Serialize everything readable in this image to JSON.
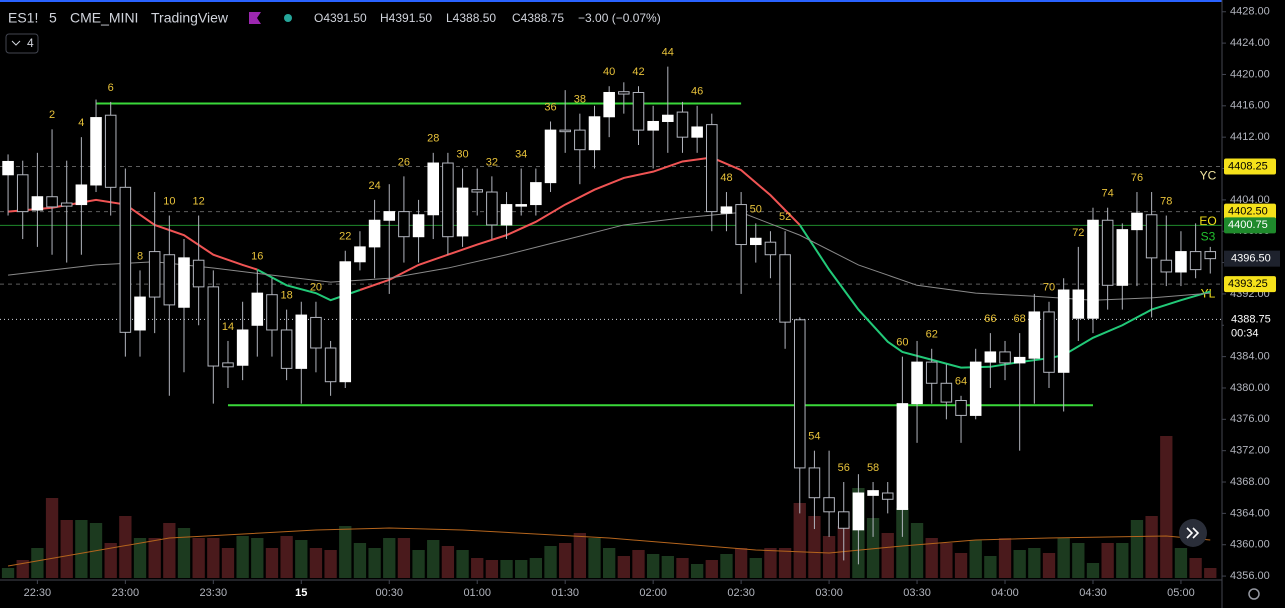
{
  "header": {
    "symbol": "ES1!",
    "interval": "5",
    "exchange": "CME_MINI",
    "source": "TradingView",
    "ohlc": [
      "O4391.50",
      "H4391.50",
      "L4388.50",
      "C4388.75",
      "−3.00 (−0.07%)"
    ],
    "indicators_count": "4"
  },
  "chart_data": {
    "type": "candlestick",
    "x": [
      -1,
      0,
      1,
      2,
      3,
      4,
      5,
      6,
      7,
      8,
      9,
      10,
      11,
      12,
      13,
      14,
      15,
      16,
      17,
      18,
      19,
      20,
      21,
      22,
      23,
      24,
      25,
      26,
      27,
      28,
      29,
      30,
      31,
      32,
      33,
      34,
      35,
      36,
      37,
      38,
      39,
      40,
      41,
      42,
      43,
      44,
      45,
      46,
      47,
      48,
      49,
      50,
      51,
      52,
      53,
      54,
      55,
      56,
      57,
      58,
      59,
      60,
      61,
      62,
      63,
      64,
      65,
      66,
      67,
      68,
      69,
      70,
      71,
      72,
      73,
      74,
      75,
      76,
      77,
      78,
      79,
      80,
      81
    ],
    "open": [
      4407.2,
      4407.2,
      4402.7,
      4404.4,
      4403.6,
      4403.4,
      4405.9,
      4414.8,
      4405.6,
      4387.4,
      4397.4,
      4397,
      4390.3,
      4396.3,
      4392.9,
      4383.2,
      4382.9,
      4388,
      4391.9,
      4387.4,
      4382.5,
      4389,
      4385.1,
      4380.8,
      4396.1,
      4398,
      4401.4,
      4402.5,
      4399.3,
      4402.1,
      4408.7,
      4399.4,
      4405.3,
      4405,
      4400.8,
      4403.2,
      4403.4,
      4406.2,
      4412.9,
      4412.9,
      4410.4,
      4414.6,
      4417.8,
      4417.7,
      4412.9,
      4414,
      4415.2,
      4412,
      4413.6,
      4402.3,
      4403.4,
      4398.3,
      4398.6,
      4397,
      4388.7,
      4369.8,
      4366,
      4364.2,
      4361.9,
      4366.3,
      4366.6,
      4364.5,
      4378,
      4383.3,
      4380.6,
      4378.4,
      4376.5,
      4383.3,
      4384.6,
      4383.2,
      4383.8,
      4389.7,
      4382,
      4388.9,
      4388.9,
      4401.4,
      4393.1,
      4400.2,
      4402.1,
      4396.3,
      4394.8,
      4397.4,
      4397.4
    ],
    "high": [
      4409.8,
      4409,
      4410,
      4413,
      4409,
      4412,
      4416.8,
      4416.5,
      4408,
      4395,
      4405,
      4402,
      4399,
      4402,
      4395,
      4386,
      4391,
      4395,
      4394,
      4390,
      4391,
      4391,
      4386,
      4397.5,
      4400,
      4404,
      4406,
      4407,
      4404,
      4410,
      4410,
      4408,
      4408,
      4407,
      4405,
      4408,
      4408,
      4414,
      4418,
      4415,
      4416,
      4418.5,
      4419,
      4418.5,
      4416,
      4421,
      4416.5,
      4416,
      4415,
      4405,
      4405,
      4401,
      4400,
      4400,
      4389,
      4372,
      4372,
      4368,
      4369,
      4368,
      4368,
      4384,
      4386,
      4385,
      4383,
      4379,
      4385,
      4387,
      4386,
      4387,
      4392,
      4391,
      4394,
      4398,
      4403,
      4403,
      4401,
      4405,
      4405,
      4402,
      4400,
      4401,
      4398
    ],
    "low": [
      4402,
      4399,
      4398,
      4397,
      4396,
      4397,
      4405,
      4402,
      4384,
      4384,
      4387,
      4379,
      4382,
      4388,
      4378,
      4380,
      4381,
      4384,
      4384,
      4381,
      4378,
      4382,
      4379,
      4380,
      4395,
      4394,
      4392,
      4396,
      4396,
      4399,
      4397,
      4398,
      4402,
      4399,
      4399,
      4402,
      4402,
      4405,
      4410,
      4406,
      4408,
      4412,
      4415,
      4411,
      4408,
      4410,
      4410,
      4410,
      4400,
      4400,
      4392,
      4396,
      4394,
      4385,
      4364,
      4362,
      4361,
      4358,
      4357.5,
      4361,
      4364,
      4361,
      4373,
      4378,
      4376,
      4373,
      4376,
      4380,
      4381,
      4372,
      4378,
      4380,
      4377,
      4386,
      4387,
      4390,
      4390,
      4393,
      4389,
      4393,
      4393,
      4394,
      4394.6
    ],
    "close": [
      4408.9,
      4402.5,
      4404.4,
      4403.1,
      4403.2,
      4405.9,
      4414.5,
      4405.6,
      4387.1,
      4391.6,
      4391.6,
      4390.6,
      4396.6,
      4392.9,
      4382.8,
      4382.7,
      4387.4,
      4392.1,
      4387.4,
      4382.5,
      4389.3,
      4385.1,
      4380.8,
      4396.1,
      4398,
      4401.4,
      4402.5,
      4399.3,
      4402.1,
      4408.7,
      4399.3,
      4405.5,
      4405,
      4400.8,
      4403.4,
      4403.4,
      4406.2,
      4412.9,
      4412.7,
      4410.4,
      4414.6,
      4417.7,
      4417.5,
      4412.9,
      4414,
      4414.8,
      4412,
      4413.3,
      4402.5,
      4403.1,
      4398.3,
      4399.1,
      4397,
      4388.4,
      4369.8,
      4366,
      4364.2,
      4362.1,
      4366.6,
      4366.9,
      4365.8,
      4378,
      4383.3,
      4380.6,
      4378.2,
      4376.5,
      4383.3,
      4384.6,
      4383.2,
      4383.9,
      4389.7,
      4382,
      4392.5,
      4392.5,
      4401.4,
      4393.1,
      4400.2,
      4402.3,
      4396.6,
      4394.8,
      4397.4,
      4395.1,
      4396.5
    ],
    "up_color": "#ffffff",
    "down_color": "#000000",
    "wick_color": "#b2b5be",
    "volume": [
      10,
      18,
      30,
      80,
      58,
      58,
      55,
      35,
      62,
      40,
      40,
      55,
      50,
      40,
      40,
      30,
      42,
      40,
      30,
      42,
      38,
      30,
      28,
      52,
      35,
      30,
      40,
      40,
      28,
      38,
      32,
      28,
      20,
      18,
      18,
      18,
      20,
      32,
      35,
      45,
      40,
      30,
      22,
      28,
      24,
      22,
      20,
      14,
      18,
      24,
      30,
      20,
      30,
      30,
      75,
      62,
      42,
      52,
      90,
      60,
      45,
      70,
      55,
      40,
      35,
      25,
      38,
      22,
      40,
      28,
      30,
      25,
      40,
      35,
      15,
      35,
      35,
      58,
      62,
      142,
      30,
      20,
      10
    ],
    "volume_lim": [
      0,
      150
    ],
    "volume_up_color": "#1c3a1f",
    "volume_down_color": "#4a1a1c",
    "volume_ma": {
      "color": "#b5651d",
      "x": [
        -1,
        10,
        20,
        25,
        30,
        40,
        50,
        55,
        60,
        65,
        70,
        78,
        81
      ],
      "values": [
        12,
        40,
        48,
        50,
        48,
        40,
        28,
        25,
        32,
        38,
        40,
        42,
        38
      ]
    },
    "lines": [
      {
        "color": "#f05454",
        "x": [
          -1,
          2,
          5,
          7,
          9,
          11,
          13,
          15,
          16
        ],
        "values": [
          4402.5,
          4403,
          4404,
          4403.4,
          4400.8,
          4399.5,
          4397,
          4395.7,
          4395.1
        ]
      },
      {
        "color": "#22c978",
        "x": [
          16,
          18,
          20,
          21,
          23
        ],
        "values": [
          4395.1,
          4393.1,
          4392.1,
          4391.2,
          4392.5
        ]
      },
      {
        "color": "#f05454",
        "x": [
          23,
          25,
          27,
          29,
          31,
          33,
          35,
          37,
          39,
          41,
          43,
          45,
          47,
          49,
          51,
          53
        ],
        "values": [
          4392.5,
          4393.8,
          4395.7,
          4397,
          4398.3,
          4399.5,
          4401.2,
          4403.4,
          4405.3,
          4406.8,
          4407.6,
          4408.9,
          4409.4,
          4407.8,
          4404.6,
          4400.8
        ]
      },
      {
        "color": "#22c978",
        "x": [
          53,
          55,
          57,
          59,
          60,
          62,
          64,
          66,
          68,
          70,
          71,
          73,
          75,
          77,
          79,
          81
        ],
        "values": [
          4400.8,
          4395.1,
          4390,
          4385.9,
          4384.6,
          4383.6,
          4382.6,
          4382.7,
          4383.3,
          4383.8,
          4384.2,
          4386.4,
          4388,
          4390,
          4391.2,
          4392.3
        ]
      },
      {
        "color": "#8a8a8a",
        "x": [
          -1,
          5,
          9,
          13,
          17,
          21,
          25,
          29,
          33,
          37,
          41,
          45,
          49,
          53,
          57,
          61,
          65,
          69,
          73,
          77,
          81
        ],
        "values": [
          4394.4,
          4395.7,
          4396.1,
          4395.3,
          4394.4,
          4393.5,
          4394,
          4395.3,
          4397,
          4398.9,
          4400.8,
          4401.7,
          4402.4,
          4399.5,
          4395.7,
          4393.1,
          4392.1,
          4391.7,
          4391.2,
          4391.5,
          4392.1
        ]
      }
    ],
    "hlines": [
      {
        "value": 4416.3,
        "x": [
          5,
          49
        ],
        "color": "#3ad83a"
      },
      {
        "value": 4377.8,
        "x": [
          14,
          73
        ],
        "color": "#3ad83a"
      }
    ],
    "levels": [
      {
        "name": "YC",
        "price": 4408.25,
        "color": "#f5e11b",
        "text_color": "#f2e6a0",
        "dashed": true
      },
      {
        "name": "EO",
        "price": {
          "value": 4402.5,
          "label": "4402.50"
        },
        "color": "#f5e11b",
        "text_color": "#f5e11b",
        "dashed": true
      },
      {
        "name": "S3",
        "price": 4400.75,
        "color": "#1f8a2c",
        "text_color": "#22c02e",
        "dashed": false
      },
      {
        "name": "YL",
        "price": 4393.25,
        "color": "#f5e11b",
        "text_color": "#f5e11b",
        "dashed": true
      }
    ],
    "last_price": {
      "value": 4396.5,
      "label": "4396.50"
    },
    "crosshair": {
      "price": 4388.75,
      "countdown": "00:34"
    },
    "bar_numbers": [
      2,
      4,
      6,
      8,
      10,
      12,
      14,
      16,
      18,
      20,
      22,
      24,
      26,
      28,
      30,
      32,
      34,
      36,
      38,
      40,
      42,
      44,
      46,
      48,
      50,
      52,
      54,
      56,
      58,
      60,
      62,
      64,
      66,
      68,
      70,
      72,
      74,
      76,
      78
    ],
    "bar_number_color": "#e8c23a",
    "ylim": [
      4355.5,
      4429.5
    ],
    "yticks": [
      {
        "value": 4428,
        "label": "4428.00"
      },
      {
        "value": 4424,
        "label": "4424.00"
      },
      {
        "value": 4420,
        "label": "4420.00"
      },
      {
        "value": 4416,
        "label": "4416.00"
      },
      {
        "value": 4412,
        "label": "4412.00"
      },
      {
        "value": 4408,
        "label": "4408.00"
      },
      {
        "value": 4404,
        "label": "4404.00"
      },
      {
        "value": 4400,
        "label": "4400.00"
      },
      {
        "value": 4396,
        "label": "4396.00"
      },
      {
        "value": 4392,
        "label": "4392.00"
      },
      {
        "value": 4388,
        "label": "4388.00"
      },
      {
        "value": 4384,
        "label": "4384.00"
      },
      {
        "value": 4380,
        "label": "4380.00"
      },
      {
        "value": 4376,
        "label": "4376.00"
      },
      {
        "value": 4372,
        "label": "4372.00"
      },
      {
        "value": 4368,
        "label": "4368.00"
      },
      {
        "value": 4364,
        "label": "4364.00"
      },
      {
        "value": 4360,
        "label": "4360.00"
      },
      {
        "value": 4356,
        "label": "4356.00"
      }
    ],
    "xlim": [
      -1.55,
      81.8
    ],
    "xticks": [
      {
        "value": 1,
        "label": "22:30"
      },
      {
        "value": 7,
        "label": "23:00"
      },
      {
        "value": 13,
        "label": "23:30"
      },
      {
        "value": 19,
        "label": "15"
      },
      {
        "value": 25,
        "label": "00:30"
      },
      {
        "value": 31,
        "label": "01:00"
      },
      {
        "value": 37,
        "label": "01:30"
      },
      {
        "value": 43,
        "label": "02:00"
      },
      {
        "value": 49,
        "label": "02:30"
      },
      {
        "value": 55,
        "label": "03:00"
      },
      {
        "value": 61,
        "label": "03:30"
      },
      {
        "value": 67,
        "label": "04:00"
      },
      {
        "value": 73,
        "label": "04:30"
      },
      {
        "value": 79,
        "label": "05:00"
      }
    ]
  }
}
